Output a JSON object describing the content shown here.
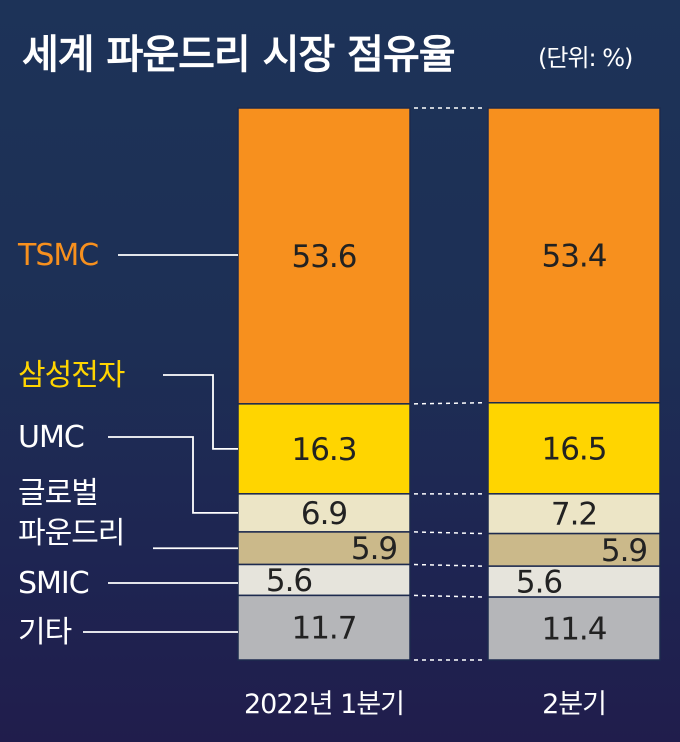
{
  "title": "세계 파운드리 시장 점유율",
  "unit": "(단위: %)",
  "chart_data": {
    "type": "bar",
    "stacked": true,
    "title": "세계 파운드리 시장 점유율",
    "unit": "%",
    "categories": [
      "2022년 1분기",
      "2분기"
    ],
    "series": [
      {
        "name": "TSMC",
        "values": [
          53.6,
          53.4
        ],
        "color": "#f7901e",
        "label_color": "#f7901e",
        "value_color": "#222222"
      },
      {
        "name": "삼성전자",
        "values": [
          16.3,
          16.5
        ],
        "color": "#ffd500",
        "label_color": "#ffd500",
        "value_color": "#222222"
      },
      {
        "name": "UMC",
        "values": [
          6.9,
          7.2
        ],
        "color": "#ece5c6",
        "label_color": "#ffffff",
        "value_color": "#222222"
      },
      {
        "name": "글로벌 파운드리",
        "values": [
          5.9,
          5.9
        ],
        "color": "#cbb98a",
        "label_color": "#ffffff",
        "value_color": "#222222"
      },
      {
        "name": "SMIC",
        "values": [
          5.6,
          5.6
        ],
        "color": "#e6e4dc",
        "label_color": "#ffffff",
        "value_color": "#222222"
      },
      {
        "name": "기타",
        "values": [
          11.7,
          11.4
        ],
        "color": "#b5b6b9",
        "label_color": "#ffffff",
        "value_color": "#222222"
      }
    ],
    "ylim": [
      0,
      100
    ],
    "grid": false,
    "legend": "left"
  }
}
